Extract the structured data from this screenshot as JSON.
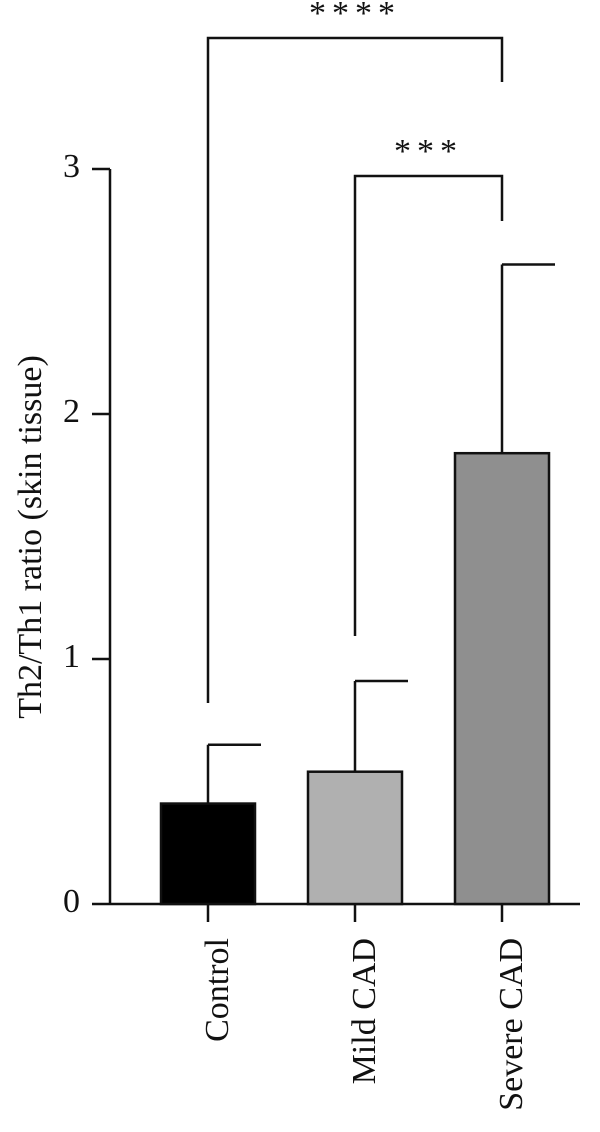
{
  "chart_data": {
    "type": "bar",
    "categories": [
      "Control",
      "Mild CAD",
      "Severe CAD"
    ],
    "values": [
      0.41,
      0.54,
      1.84
    ],
    "error_upper": [
      0.65,
      0.91,
      2.61
    ],
    "bar_colors": [
      "#000000",
      "#b0b0b0",
      "#8f8f8f"
    ],
    "ylabel": "Th2/Th1 ratio (skin tissue)",
    "ylim": [
      0,
      3
    ],
    "yticks": [
      "0",
      "1",
      "2",
      "3"
    ],
    "grid": false,
    "legend": "none",
    "significance": [
      {
        "from": "Control",
        "to": "Severe CAD",
        "label": "****"
      },
      {
        "from": "Mild CAD",
        "to": "Severe CAD",
        "label": "***"
      }
    ]
  }
}
